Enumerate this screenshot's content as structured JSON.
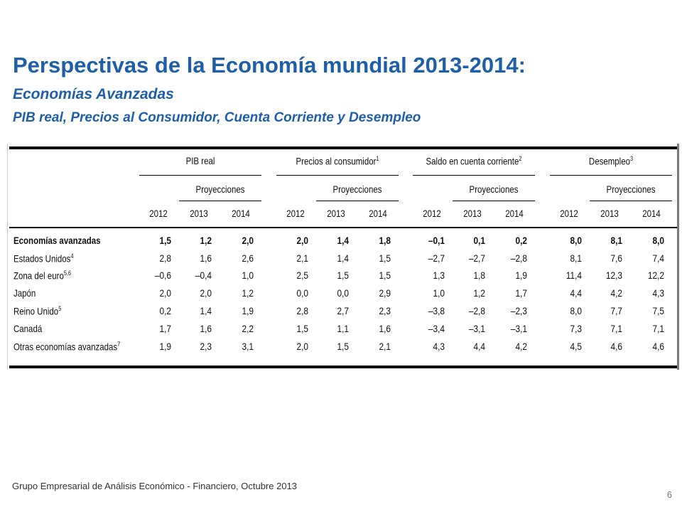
{
  "title": "Perspectivas de la Economía mundial 2013-2014:",
  "subtitle": "Economías Avanzadas",
  "subtitle2": "PIB real, Precios al Consumidor, Cuenta Corriente y Desempleo",
  "table": {
    "groups": [
      {
        "label": "PIB real",
        "sup": ""
      },
      {
        "label": "Precios al consumidor",
        "sup": "1"
      },
      {
        "label": "Saldo en cuenta corriente",
        "sup": "2"
      },
      {
        "label": "Desempleo",
        "sup": "3"
      }
    ],
    "projections_label": "Proyecciones",
    "years": [
      "2012",
      "2013",
      "2014"
    ],
    "rows": [
      {
        "label": "Economías avanzadas",
        "sup": "",
        "bold": true,
        "values": [
          "1,5",
          "1,2",
          "2,0",
          "2,0",
          "1,4",
          "1,8",
          "–0,1",
          "0,1",
          "0,2",
          "8,0",
          "8,1",
          "8,0"
        ]
      },
      {
        "label": "Estados Unidos",
        "sup": "4",
        "bold": false,
        "values": [
          "2,8",
          "1,6",
          "2,6",
          "2,1",
          "1,4",
          "1,5",
          "–2,7",
          "–2,7",
          "–2,8",
          "8,1",
          "7,6",
          "7,4"
        ]
      },
      {
        "label": "Zona del euro",
        "sup": "5,6",
        "bold": false,
        "values": [
          "–0,6",
          "–0,4",
          "1,0",
          "2,5",
          "1,5",
          "1,5",
          "1,3",
          "1,8",
          "1,9",
          "11,4",
          "12,3",
          "12,2"
        ]
      },
      {
        "label": "Japón",
        "sup": "",
        "bold": false,
        "values": [
          "2,0",
          "2,0",
          "1,2",
          "0,0",
          "0,0",
          "2,9",
          "1,0",
          "1,2",
          "1,7",
          "4,4",
          "4,2",
          "4,3"
        ]
      },
      {
        "label": "Reino Unido",
        "sup": "5",
        "bold": false,
        "values": [
          "0,2",
          "1,4",
          "1,9",
          "2,8",
          "2,7",
          "2,3",
          "–3,8",
          "–2,8",
          "–2,3",
          "8,0",
          "7,7",
          "7,5"
        ]
      },
      {
        "label": "Canadá",
        "sup": "",
        "bold": false,
        "values": [
          "1,7",
          "1,6",
          "2,2",
          "1,5",
          "1,1",
          "1,6",
          "–3,4",
          "–3,1",
          "–3,1",
          "7,3",
          "7,1",
          "7,1"
        ]
      },
      {
        "label": "Otras economías avanzadas",
        "sup": "7",
        "bold": false,
        "values": [
          "1,9",
          "2,3",
          "3,1",
          "2,0",
          "1,5",
          "2,1",
          "4,3",
          "4,4",
          "4,2",
          "4,5",
          "4,6",
          "4,6"
        ]
      }
    ]
  },
  "footer": "Grupo Empresarial de Análisis Económico - Financiero,  Octubre 2013",
  "page_number": "6"
}
